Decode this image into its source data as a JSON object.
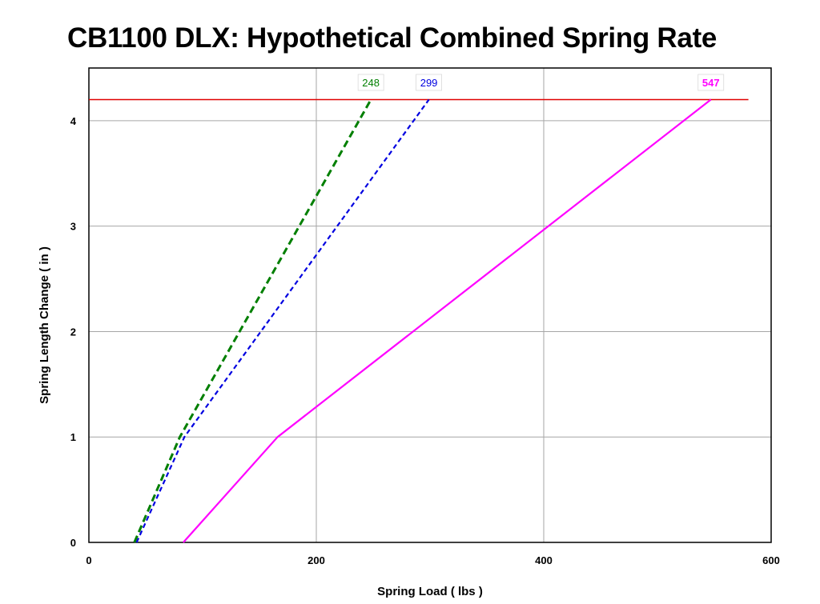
{
  "chart_data": {
    "type": "line",
    "title": "CB1100 DLX: Hypothetical Combined Spring Rate",
    "xlabel": "Spring Load ( lbs )",
    "ylabel": "Spring Length Change ( in )",
    "xlim": [
      0,
      600
    ],
    "ylim": [
      0,
      4.5
    ],
    "xticks": [
      0,
      200,
      400,
      600
    ],
    "yticks": [
      0,
      1,
      2,
      3,
      4
    ],
    "grid": true,
    "series": [
      {
        "color": "#007f00",
        "style": "dashed",
        "x": [
          40,
          80,
          248
        ],
        "y": [
          0,
          1,
          4.2
        ],
        "end_label": "248"
      },
      {
        "color": "#0000e0",
        "style": "dashed",
        "x": [
          42,
          84,
          299
        ],
        "y": [
          0,
          1,
          4.2
        ],
        "end_label": "299"
      },
      {
        "color": "#ff00ff",
        "style": "solid",
        "x": [
          83,
          166,
          547
        ],
        "y": [
          0,
          1,
          4.2
        ],
        "end_label": "547"
      }
    ],
    "reference_lines": [
      {
        "color": "#e00000",
        "y": 4.2,
        "x": [
          0,
          580
        ]
      }
    ]
  }
}
